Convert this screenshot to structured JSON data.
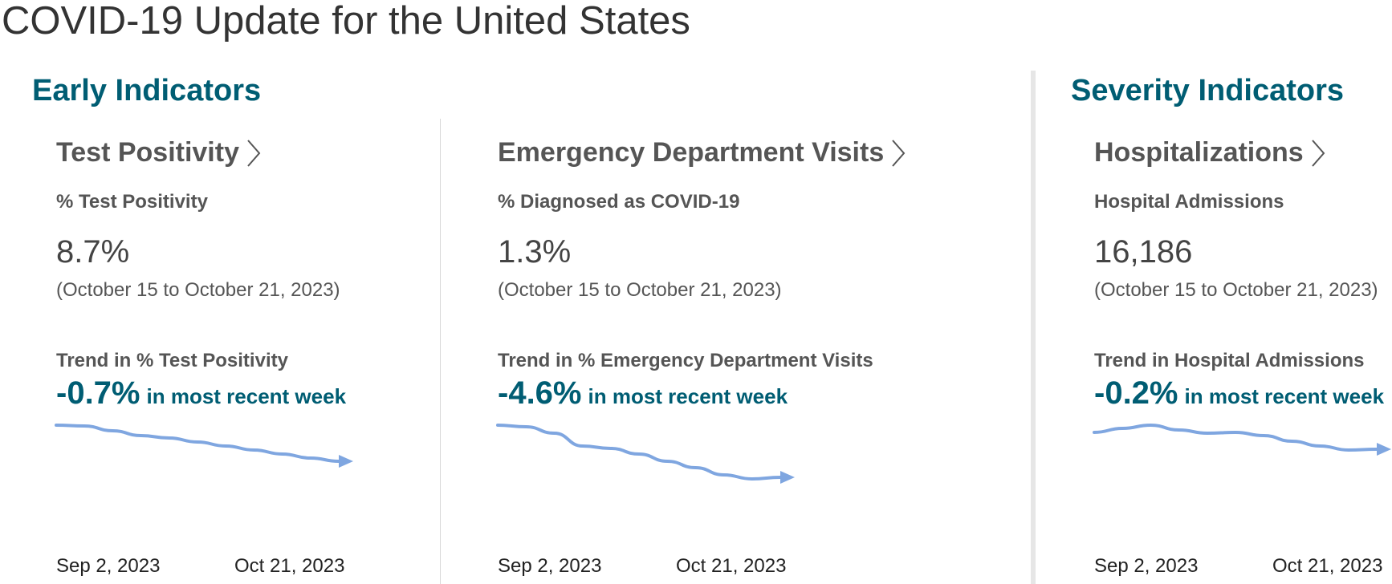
{
  "page": {
    "title": "COVID-19 Update for the United States"
  },
  "sections": {
    "early": {
      "title": "Early Indicators"
    },
    "severity": {
      "title": "Severity Indicators"
    }
  },
  "colors": {
    "section_title": "#005d73",
    "trend_line": "#7fa6e0",
    "heading_gray": "#555555"
  },
  "icons": {
    "card_link": "chevron-right-icon"
  },
  "cards": [
    {
      "title": "Test Positivity",
      "metric_label": "% Test Positivity",
      "value": "8.7%",
      "date_range": "(October 15 to October 21, 2023)",
      "trend_label": "Trend in % Test Positivity",
      "trend_pct": "-0.7%",
      "trend_suffix": "in most recent week",
      "axis_start": "Sep 2, 2023",
      "axis_end": "Oct 21, 2023"
    },
    {
      "title": "Emergency Department Visits",
      "metric_label": "% Diagnosed as COVID-19",
      "value": "1.3%",
      "date_range": "(October 15 to October 21, 2023)",
      "trend_label": "Trend in % Emergency Department Visits",
      "trend_pct": "-4.6%",
      "trend_suffix": "in most recent week",
      "axis_start": "Sep 2, 2023",
      "axis_end": "Oct 21, 2023"
    },
    {
      "title": "Hospitalizations",
      "metric_label": "Hospital Admissions",
      "value": "16,186",
      "date_range": "(October 15 to October 21, 2023)",
      "trend_label": "Trend in Hospital Admissions",
      "trend_pct": "-0.2%",
      "trend_suffix": "in most recent week",
      "axis_start": "Sep 2, 2023",
      "axis_end": "Oct 21, 2023"
    }
  ],
  "chart_data": [
    {
      "type": "line",
      "series": [
        {
          "values": [
            1.0,
            0.99,
            0.93,
            0.87,
            0.84,
            0.79,
            0.74,
            0.69,
            0.64,
            0.59,
            0.55
          ]
        }
      ]
    },
    {
      "type": "line",
      "series": [
        {
          "values": [
            1.0,
            0.98,
            0.9,
            0.74,
            0.71,
            0.64,
            0.55,
            0.47,
            0.38,
            0.33,
            0.35
          ]
        }
      ]
    },
    {
      "type": "line",
      "series": [
        {
          "values": [
            0.91,
            0.96,
            1.0,
            0.94,
            0.9,
            0.91,
            0.87,
            0.8,
            0.74,
            0.69,
            0.7
          ]
        }
      ]
    }
  ]
}
